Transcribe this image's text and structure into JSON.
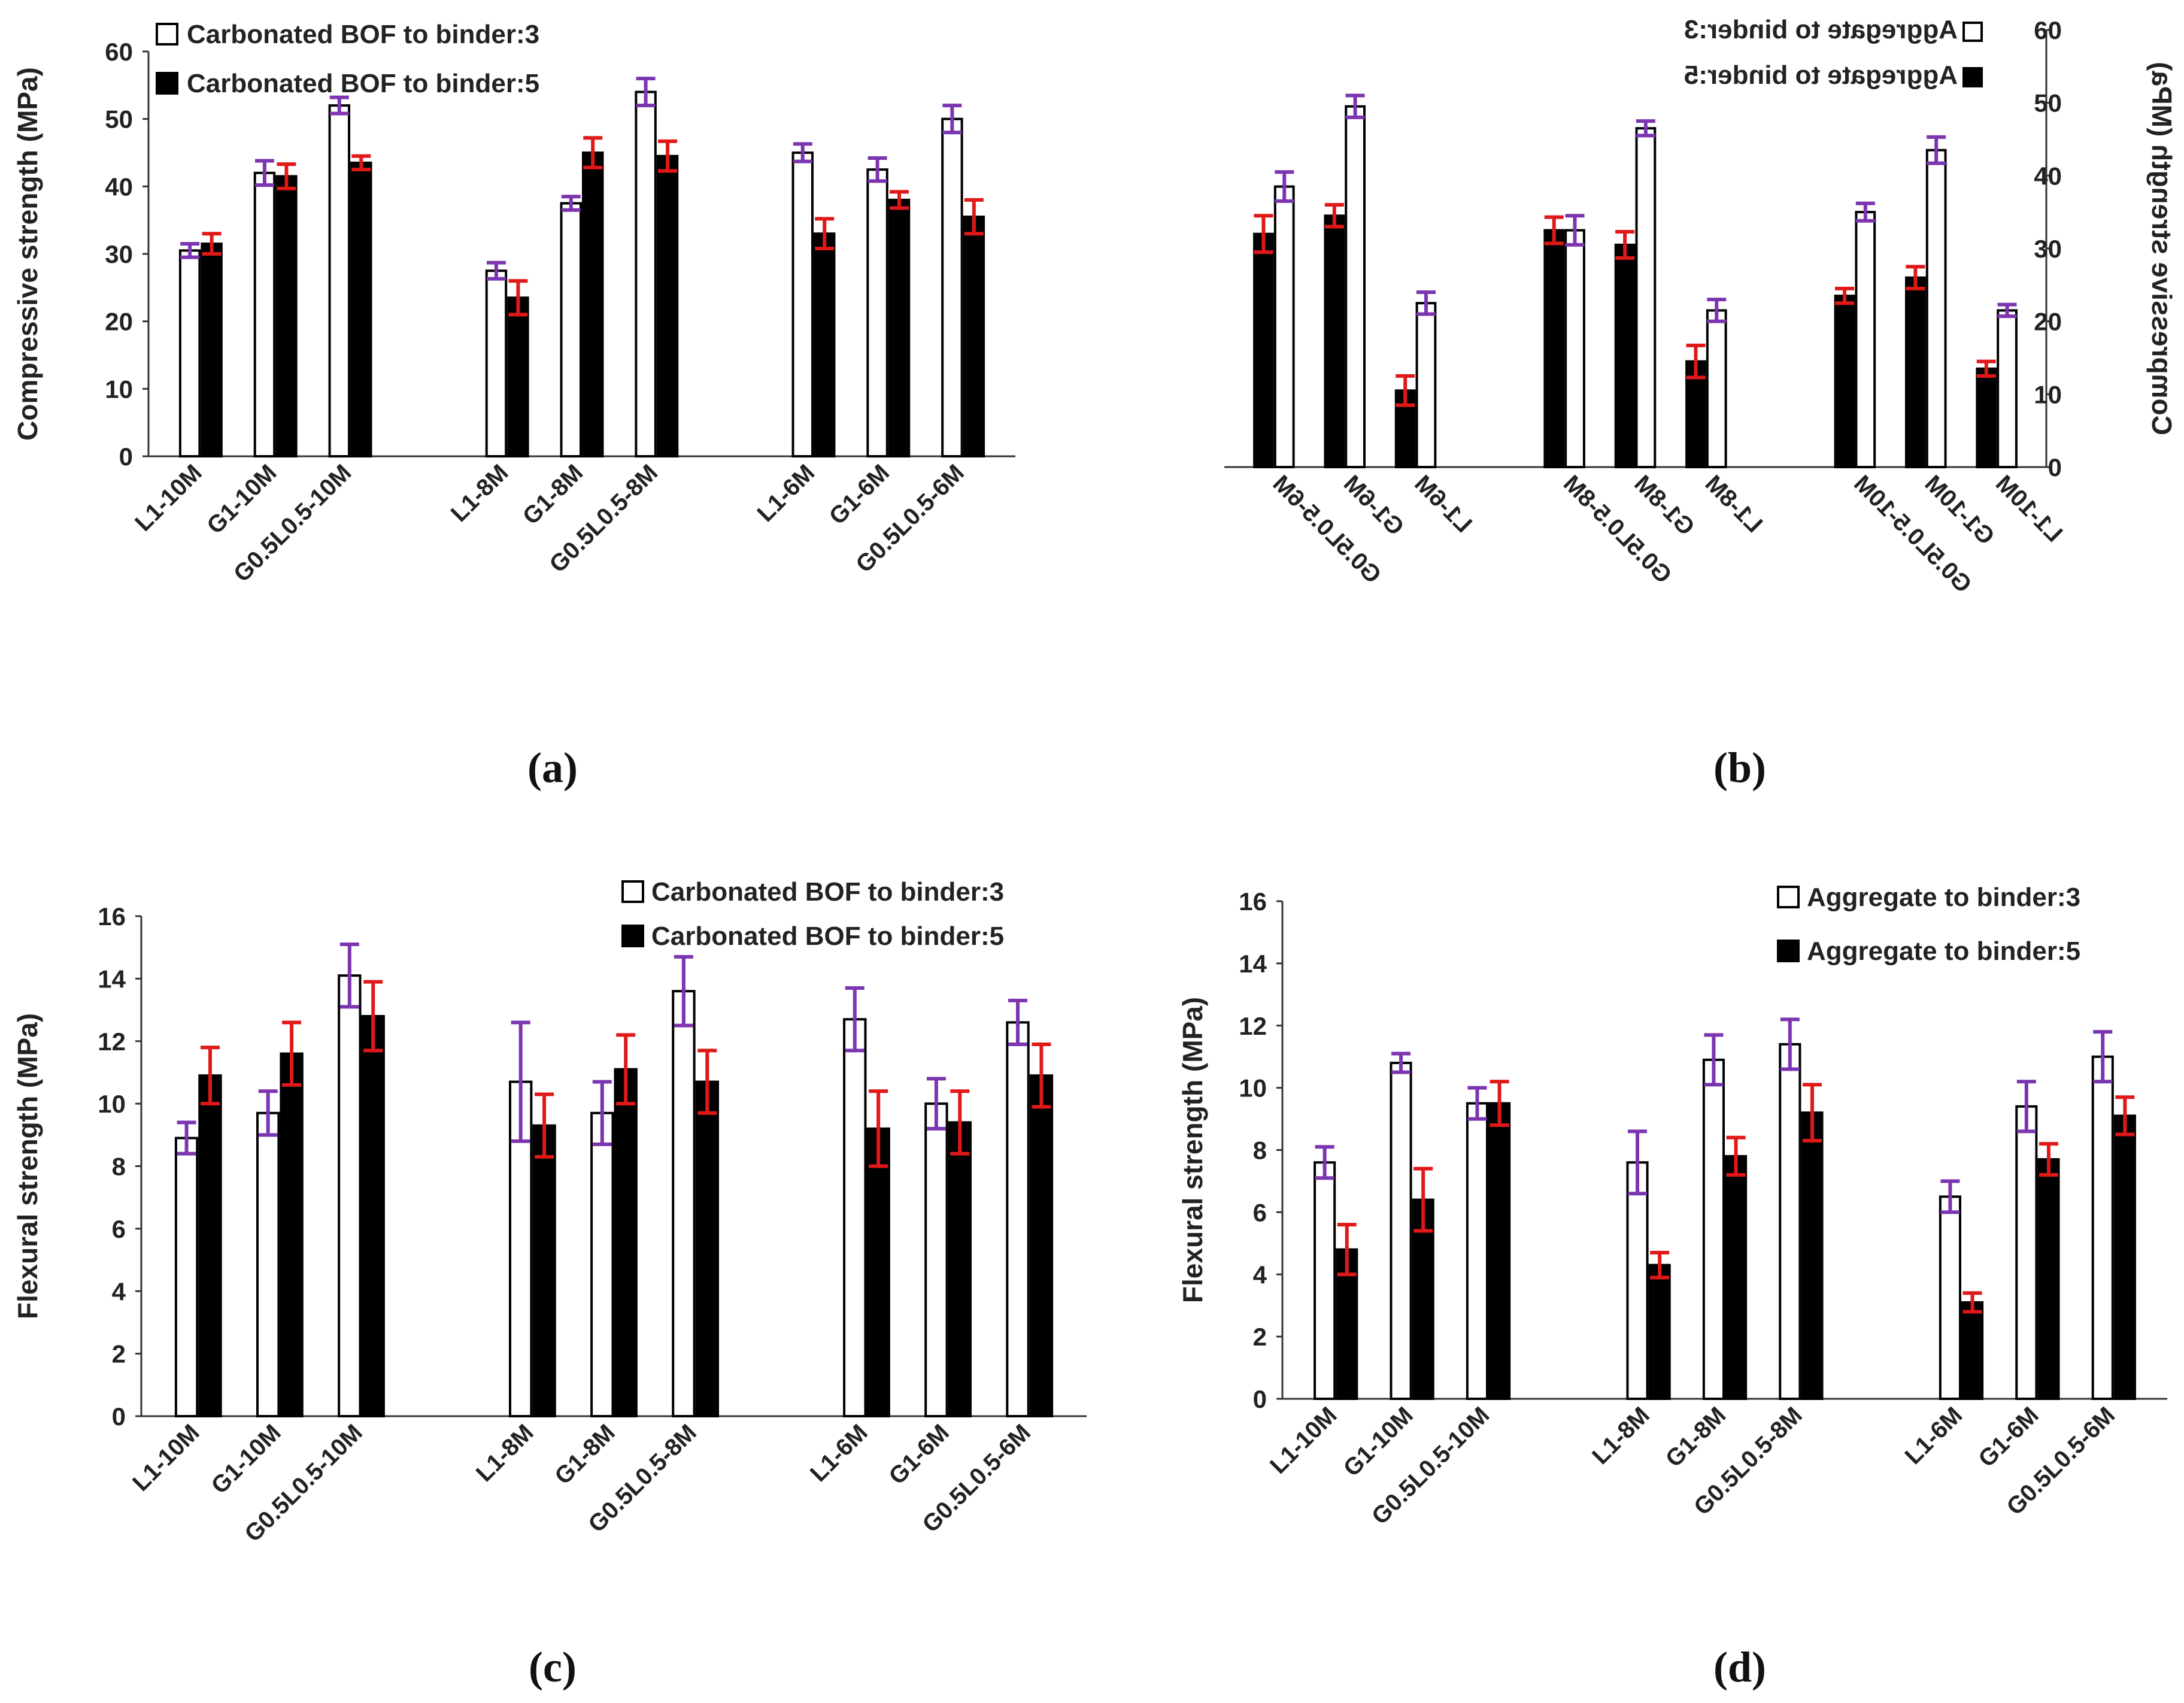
{
  "chart_data": [
    {
      "id": "a",
      "type": "bar",
      "panel_label": "(a)",
      "ylabel": "Compressive strength (MPa)",
      "ylim": [
        0,
        60
      ],
      "yticks": [
        0,
        10,
        20,
        30,
        40,
        50,
        60
      ],
      "categories": [
        "L1-10M",
        "G1-10M",
        "G0.5L0.5-10M",
        "L1-8M",
        "G1-8M",
        "G0.5L0.5-8M",
        "L1-6M",
        "G1-6M",
        "G0.5L0.5-6M"
      ],
      "series": [
        {
          "name": "Carbonated BOF to binder:3",
          "fill": "#ffffff",
          "error_color": "#7b35b0",
          "values": [
            30.5,
            42,
            52,
            27.5,
            37.5,
            54,
            45,
            42.5,
            50
          ],
          "errors": [
            1,
            1.8,
            1.2,
            1.2,
            1,
            2,
            1.3,
            1.7,
            2
          ]
        },
        {
          "name": "Carbonated BOF to binder:5",
          "fill": "#000000",
          "error_color": "#e01818",
          "values": [
            31.5,
            41.5,
            43.5,
            23.5,
            45,
            44.5,
            33,
            38,
            35.5
          ],
          "errors": [
            1.5,
            1.8,
            1,
            2.5,
            2.2,
            2.2,
            2.2,
            1.2,
            2.5
          ]
        }
      ],
      "legend": "top-left",
      "mirrored": false
    },
    {
      "id": "b",
      "type": "bar",
      "panel_label": "(b)",
      "ylabel": "Compressive strength (MPa)",
      "ylim": [
        0,
        60
      ],
      "yticks": [
        0,
        10,
        20,
        30,
        40,
        50,
        60
      ],
      "categories": [
        "L1-10M",
        "G1-10M",
        "G0.5L0.5-10M",
        "L1-8M",
        "G1-8M",
        "G0.5L0.5-8M",
        "L1-6M",
        "G1-6M",
        "G0.5L0.5-6M"
      ],
      "series": [
        {
          "name": "Aggregate to binder:3",
          "fill": "#ffffff",
          "error_color": "#7b35b0",
          "values": [
            21.5,
            43.5,
            35,
            21.5,
            46.5,
            32.5,
            22.5,
            49.5,
            38.5
          ],
          "errors": [
            0.8,
            1.8,
            1.2,
            1.5,
            1,
            2,
            1.5,
            1.5,
            2
          ]
        },
        {
          "name": "Aggregate to binder:5",
          "fill": "#000000",
          "error_color": "#e01818",
          "values": [
            13.5,
            26,
            23.5,
            14.5,
            30.5,
            32.5,
            10.5,
            34.5,
            32
          ],
          "errors": [
            1,
            1.5,
            1,
            2.2,
            1.8,
            1.8,
            2,
            1.5,
            2.5
          ]
        }
      ],
      "legend": "top-right",
      "mirrored": true
    },
    {
      "id": "c",
      "type": "bar",
      "panel_label": "(c)",
      "ylabel": "Flexural strength (MPa)",
      "ylim": [
        0,
        16
      ],
      "yticks": [
        0,
        2,
        4,
        6,
        8,
        10,
        12,
        14,
        16
      ],
      "categories": [
        "L1-10M",
        "G1-10M",
        "G0.5L0.5-10M",
        "L1-8M",
        "G1-8M",
        "G0.5L0.5-8M",
        "L1-6M",
        "G1-6M",
        "G0.5L0.5-6M"
      ],
      "series": [
        {
          "name": "Carbonated BOF to binder:3",
          "fill": "#ffffff",
          "error_color": "#7b35b0",
          "values": [
            8.9,
            9.7,
            14.1,
            10.7,
            9.7,
            13.6,
            12.7,
            10,
            12.6
          ],
          "errors": [
            0.5,
            0.7,
            1,
            1.9,
            1,
            1.1,
            1,
            0.8,
            0.7
          ]
        },
        {
          "name": "Carbonated BOF to binder:5",
          "fill": "#000000",
          "error_color": "#e01818",
          "values": [
            10.9,
            11.6,
            12.8,
            9.3,
            11.1,
            10.7,
            9.2,
            9.4,
            10.9
          ],
          "errors": [
            0.9,
            1,
            1.1,
            1,
            1.1,
            1,
            1.2,
            1,
            1
          ]
        }
      ],
      "legend": "top-right",
      "mirrored": false
    },
    {
      "id": "d",
      "type": "bar",
      "panel_label": "(d)",
      "ylabel": "Flexural strength (MPa)",
      "ylim": [
        0,
        16
      ],
      "yticks": [
        0,
        2,
        4,
        6,
        8,
        10,
        12,
        14,
        16
      ],
      "categories": [
        "L1-10M",
        "G1-10M",
        "G0.5L0.5-10M",
        "L1-8M",
        "G1-8M",
        "G0.5L0.5-8M",
        "L1-6M",
        "G1-6M",
        "G0.5L0.5-6M"
      ],
      "series": [
        {
          "name": "Aggregate to binder:3",
          "fill": "#ffffff",
          "error_color": "#7b35b0",
          "values": [
            7.6,
            10.8,
            9.5,
            7.6,
            10.9,
            11.4,
            6.5,
            9.4,
            11
          ],
          "errors": [
            0.5,
            0.3,
            0.5,
            1,
            0.8,
            0.8,
            0.5,
            0.8,
            0.8
          ]
        },
        {
          "name": "Aggregate to binder:5",
          "fill": "#000000",
          "error_color": "#e01818",
          "values": [
            4.8,
            6.4,
            9.5,
            4.3,
            7.8,
            9.2,
            3.1,
            7.7,
            9.1
          ],
          "errors": [
            0.8,
            1,
            0.7,
            0.4,
            0.6,
            0.9,
            0.3,
            0.5,
            0.6
          ]
        }
      ],
      "legend": "top-right",
      "mirrored": false
    }
  ]
}
